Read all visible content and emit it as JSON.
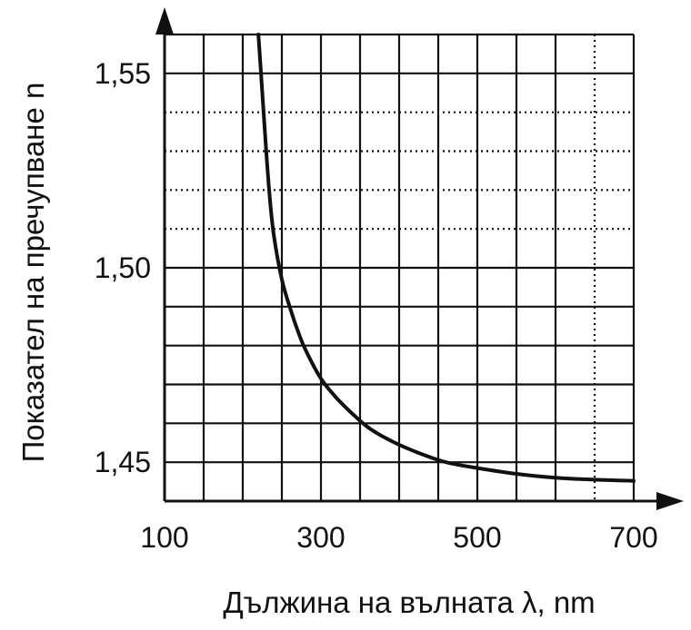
{
  "chart_data": {
    "type": "line",
    "xlabel": "Дължина на вълната λ, nm",
    "ylabel": "Показател на пречупване n",
    "xlim": [
      100,
      700
    ],
    "ylim": [
      1.44,
      1.56
    ],
    "x_ticks": [
      "100",
      "300",
      "500",
      "700"
    ],
    "y_ticks": [
      "1,45",
      "1,50",
      "1,55"
    ],
    "x_tick_values": [
      100,
      300,
      500,
      700
    ],
    "y_tick_values": [
      1.45,
      1.5,
      1.55
    ],
    "grid": true,
    "series": [
      {
        "x": [
          220,
          225,
          230,
          235,
          240,
          250,
          260,
          270,
          280,
          300,
          320,
          340,
          360,
          380,
          400,
          430,
          460,
          500,
          550,
          600,
          650,
          700
        ],
        "y": [
          1.56,
          1.545,
          1.53,
          1.517,
          1.508,
          1.497,
          1.49,
          1.484,
          1.479,
          1.4715,
          1.4665,
          1.4625,
          1.459,
          1.4565,
          1.4545,
          1.452,
          1.45,
          1.4485,
          1.447,
          1.446,
          1.4455,
          1.4452
        ]
      }
    ]
  }
}
